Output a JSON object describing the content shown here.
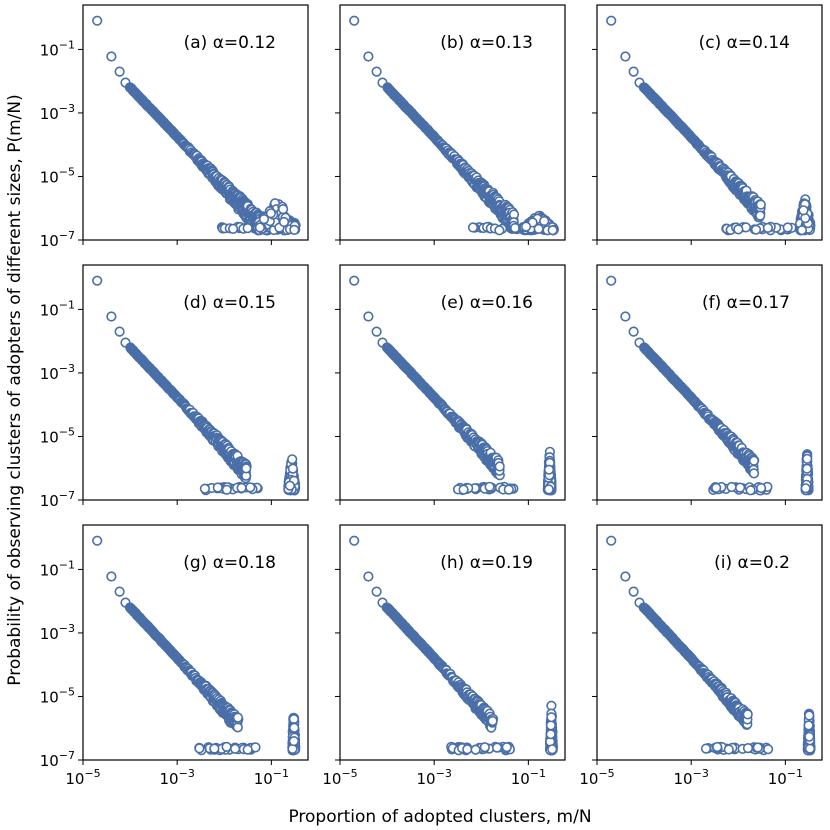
{
  "chart_data": {
    "type": "scatter",
    "xscale": "log",
    "yscale": "log",
    "xlim": [
      1e-05,
      0.6
    ],
    "ylim": [
      1e-07,
      2.5
    ],
    "xlabel": "Proportion of adopted clusters,  m/N",
    "ylabel": "Probability of observing clusters of adopters of different sizes, P(m/N)",
    "x_ticks": [
      {
        "value": 1e-05,
        "label": "10−5"
      },
      {
        "value": 0.001,
        "label": "10−3"
      },
      {
        "value": 0.1,
        "label": "10−1"
      }
    ],
    "y_ticks": [
      {
        "value": 0.1,
        "label": "10−1"
      },
      {
        "value": 0.001,
        "label": "10−3"
      },
      {
        "value": 1e-05,
        "label": "10−5"
      },
      {
        "value": 1e-07,
        "label": "10−7"
      }
    ],
    "marker_color": "#4a6fa8",
    "panels": [
      {
        "label": "(a) α=0.12",
        "alpha": 0.12,
        "tail_end_x": 0.06,
        "bump": {
          "x_min": 0.05,
          "x_max": 0.33,
          "y_max": 2.5e-06
        }
      },
      {
        "label": "(b) α=0.13",
        "alpha": 0.13,
        "tail_end_x": 0.05,
        "bump": {
          "x_min": 0.08,
          "x_max": 0.35,
          "y_max": 7e-07
        }
      },
      {
        "label": "(c) α=0.14",
        "alpha": 0.14,
        "tail_end_x": 0.03,
        "bump": {
          "x_min": 0.2,
          "x_max": 0.34,
          "y_max": 3e-06
        }
      },
      {
        "label": "(d) α=0.15",
        "alpha": 0.15,
        "tail_end_x": 0.03,
        "bump": {
          "x_min": 0.23,
          "x_max": 0.32,
          "y_max": 3e-06
        }
      },
      {
        "label": "(e) α=0.16",
        "alpha": 0.16,
        "tail_end_x": 0.025,
        "bump": {
          "x_min": 0.26,
          "x_max": 0.31,
          "y_max": 4.5e-06
        }
      },
      {
        "label": "(f) α=0.17",
        "alpha": 0.17,
        "tail_end_x": 0.022,
        "bump": {
          "x_min": 0.27,
          "x_max": 0.31,
          "y_max": 5e-06
        }
      },
      {
        "label": "(g) α=0.18",
        "alpha": 0.18,
        "tail_end_x": 0.02,
        "bump": {
          "x_min": 0.28,
          "x_max": 0.32,
          "y_max": 6e-06
        }
      },
      {
        "label": "(h) α=0.19",
        "alpha": 0.19,
        "tail_end_x": 0.018,
        "bump": {
          "x_min": 0.29,
          "x_max": 0.33,
          "y_max": 6e-06
        }
      },
      {
        "label": "(i) α=0.2",
        "alpha": 0.2,
        "tail_end_x": 0.016,
        "bump": {
          "x_min": 0.3,
          "x_max": 0.34,
          "y_max": 6e-06
        }
      }
    ],
    "head_points": [
      {
        "x": 2e-05,
        "y": 0.8
      },
      {
        "x": 4e-05,
        "y": 0.06
      },
      {
        "x": 6e-05,
        "y": 0.02
      },
      {
        "x": 8e-05,
        "y": 0.009
      }
    ]
  }
}
